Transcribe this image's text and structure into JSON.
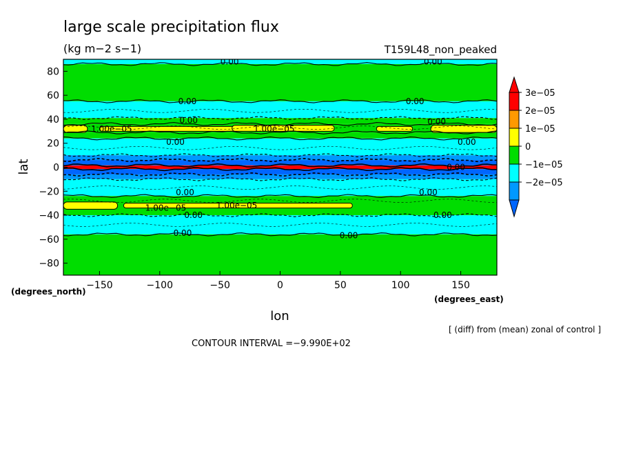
{
  "chart_data": {
    "type": "heatmap",
    "title": "large scale precipitation flux",
    "units": "(kg m−2 s−1)",
    "run_label": "T159L48_non_peaked",
    "xlabel": "lon",
    "ylabel": "lat",
    "x_units": "(degrees_east)",
    "y_units": "(degrees_north)",
    "xlim": [
      -180,
      180
    ],
    "ylim": [
      -90,
      90
    ],
    "x_ticks": [
      -150,
      -100,
      -50,
      0,
      50,
      100,
      150
    ],
    "y_ticks": [
      80,
      60,
      40,
      20,
      0,
      -20,
      -40,
      -60,
      -80
    ],
    "x_tick_labels": [
      "−150",
      "−100",
      "−50",
      "0",
      "50",
      "100",
      "150"
    ],
    "y_tick_labels": [
      "80",
      "60",
      "40",
      "20",
      "0",
      "−20",
      "−40",
      "−60",
      "−80"
    ],
    "footnote": "[ (diff) from (mean) zonal of control ]",
    "contour_interval": "CONTOUR INTERVAL =−9.990E+02",
    "colorbar": {
      "labels": [
        "3e−05",
        "2e−05",
        "1e−05",
        "0",
        "−1e−05",
        "−2e−05"
      ],
      "colors": [
        "#ff0000",
        "#ff9900",
        "#ffff00",
        "#00dd00",
        "#00ffff",
        "#0099ff"
      ],
      "extend_top_color": "#ff0000",
      "extend_bottom_color": "#0066ff"
    },
    "zonal_bands": [
      {
        "lat_from": 90,
        "lat_to": 86,
        "color": "#00ffff"
      },
      {
        "lat_from": 86,
        "lat_to": 55,
        "color": "#00dd00"
      },
      {
        "lat_from": 55,
        "lat_to": 41,
        "color": "#00ffff"
      },
      {
        "lat_from": 41,
        "lat_to": 36,
        "color": "#00dd00"
      },
      {
        "lat_from": 36,
        "lat_to": 29,
        "color": "#00dd00"
      },
      {
        "lat_from": 29,
        "lat_to": 24,
        "color": "#00dd00"
      },
      {
        "lat_from": 24,
        "lat_to": 10,
        "color": "#00ffff"
      },
      {
        "lat_from": 10,
        "lat_to": 6,
        "color": "#0099ff"
      },
      {
        "lat_from": 6,
        "lat_to": 1.5,
        "color": "#0066ff"
      },
      {
        "lat_from": 1.5,
        "lat_to": -1.5,
        "color": "#ff0000"
      },
      {
        "lat_from": -1.5,
        "lat_to": -6,
        "color": "#0066ff"
      },
      {
        "lat_from": -6,
        "lat_to": -10,
        "color": "#0099ff"
      },
      {
        "lat_from": -10,
        "lat_to": -24,
        "color": "#00ffff"
      },
      {
        "lat_from": -24,
        "lat_to": -40,
        "color": "#00dd00"
      },
      {
        "lat_from": -40,
        "lat_to": -56,
        "color": "#00ffff"
      },
      {
        "lat_from": -56,
        "lat_to": -90,
        "color": "#00dd00"
      }
    ],
    "yellow_patches": [
      {
        "lon_from": -180,
        "lon_to": -160,
        "lat_from": 35,
        "lat_to": 29
      },
      {
        "lon_from": -150,
        "lon_to": -30,
        "lat_from": 34,
        "lat_to": 30
      },
      {
        "lon_from": -40,
        "lon_to": 45,
        "lat_from": 35,
        "lat_to": 30
      },
      {
        "lon_from": 80,
        "lon_to": 110,
        "lat_from": 34,
        "lat_to": 30
      },
      {
        "lon_from": 125,
        "lon_to": 180,
        "lat_from": 35,
        "lat_to": 29
      },
      {
        "lon_from": -180,
        "lon_to": -135,
        "lat_from": -29,
        "lat_to": -35
      },
      {
        "lon_from": -130,
        "lon_to": 60,
        "lat_from": -30,
        "lat_to": -34
      }
    ],
    "contour_labels": [
      {
        "text": "0.00",
        "lon": -42,
        "lat": 88
      },
      {
        "text": "0.00",
        "lon": 127,
        "lat": 88
      },
      {
        "text": "0.00",
        "lon": -77,
        "lat": 55
      },
      {
        "text": "0.00",
        "lon": 112,
        "lat": 55
      },
      {
        "text": "0.00",
        "lon": -76,
        "lat": 39
      },
      {
        "text": "0.00",
        "lon": 130,
        "lat": 38
      },
      {
        "text": "1.00e−05",
        "lon": -140,
        "lat": 32
      },
      {
        "text": "1.00e−05",
        "lon": -5,
        "lat": 32
      },
      {
        "text": "0.00",
        "lon": -87,
        "lat": 21
      },
      {
        "text": "0.00",
        "lon": 155,
        "lat": 21
      },
      {
        "text": "0.00",
        "lon": 146,
        "lat": 0
      },
      {
        "text": "0.00",
        "lon": -79,
        "lat": -21
      },
      {
        "text": "0.00",
        "lon": 123,
        "lat": -21
      },
      {
        "text": "1.00e−05",
        "lon": -95,
        "lat": -34
      },
      {
        "text": "1.00e−05",
        "lon": -36,
        "lat": -32
      },
      {
        "text": "0.00",
        "lon": -72,
        "lat": -40
      },
      {
        "text": "0.00",
        "lon": 135,
        "lat": -40
      },
      {
        "text": "0.00",
        "lon": -81,
        "lat": -55
      },
      {
        "text": "0.00",
        "lon": 57,
        "lat": -57
      }
    ],
    "grid": false
  }
}
